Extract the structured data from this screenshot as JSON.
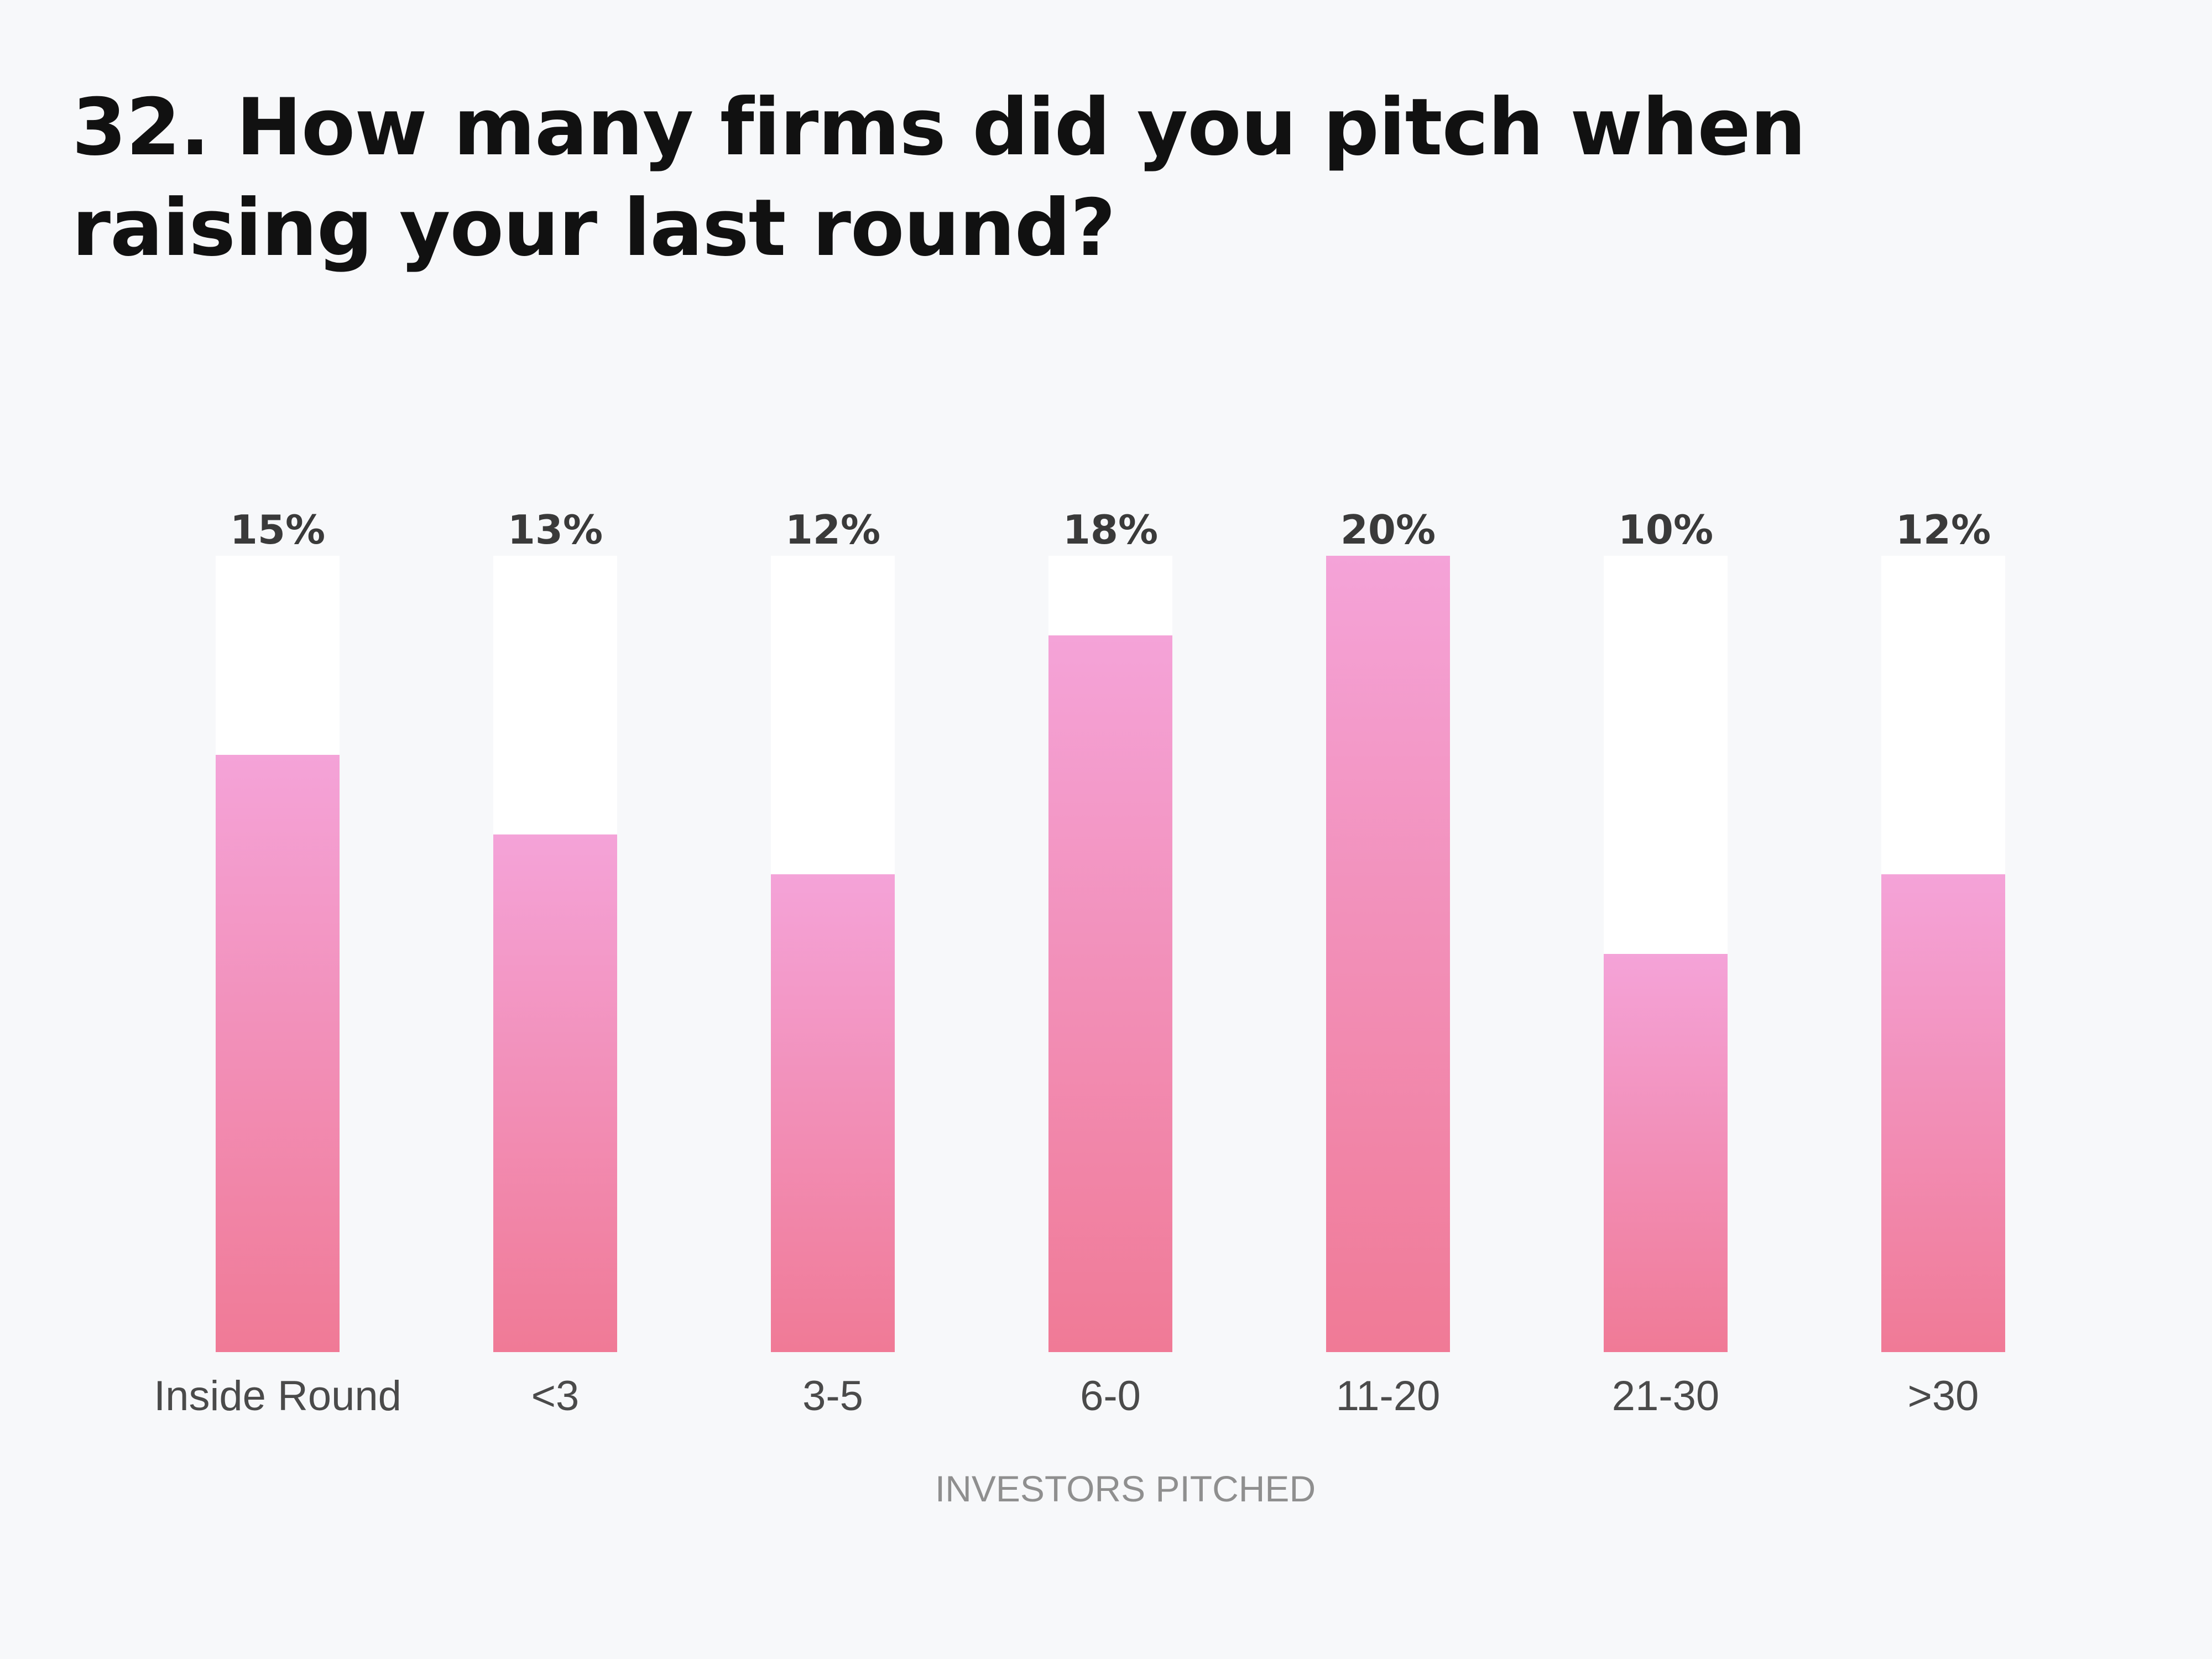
{
  "title": "32. How many firms did you pitch when raising your last round?",
  "chart_data": {
    "type": "bar",
    "categories": [
      "Inside Round",
      "<3",
      "3-5",
      "6-0",
      "11-20",
      "21-30",
      ">30"
    ],
    "values": [
      15,
      13,
      12,
      18,
      20,
      10,
      12
    ],
    "value_labels": [
      "15%",
      "13%",
      "12%",
      "18%",
      "20%",
      "10%",
      "12%"
    ],
    "xlabel": "INVESTORS PITCHED",
    "ylabel": "",
    "ylim": [
      0,
      20
    ],
    "grid": false,
    "legend": "none",
    "colors": {
      "bar_top": "#f4a3d8",
      "bar_bottom": "#f07a96",
      "track": "#ffffff"
    }
  }
}
